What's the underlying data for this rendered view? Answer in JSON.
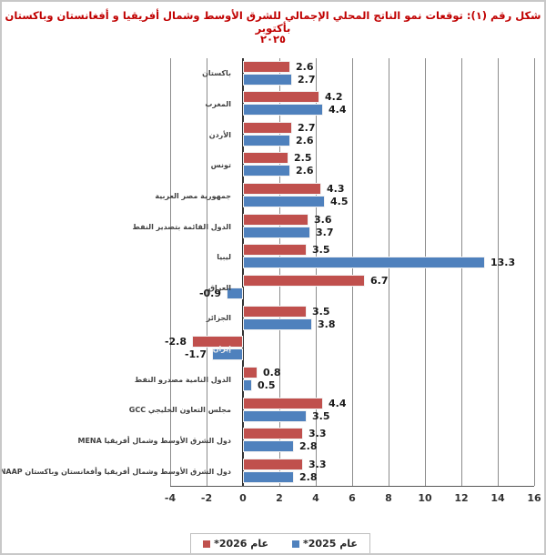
{
  "figure": {
    "title_line1": "شكل رقم (١): توقعات نمو الناتج المحلي الإجمالي للشرق الأوسط وشمال أفريقيا و أفغانستان وباكستان بأكتوبر",
    "title_line2": "٢٠٢٥",
    "title_color": "#C00000"
  },
  "chart_data": {
    "type": "bar",
    "orientation": "horizontal",
    "title": "شكل رقم (١): توقعات نمو الناتج المحلي الإجمالي للشرق الأوسط وشمال أفريقيا و أفغانستان وباكستان بأكتوبر ٢٠٢٥",
    "xlabel": "",
    "ylabel": "",
    "xlim": [
      -4,
      16
    ],
    "x_ticks": [
      -4,
      -2,
      0,
      2,
      4,
      6,
      8,
      10,
      12,
      14,
      16
    ],
    "grid": true,
    "legend_position": "bottom-center",
    "categories": [
      "باكستان",
      "المغرب",
      "الأردن",
      "تونس",
      "جمهورية مصر العربية",
      "الدول القائمة بتصدير النفط",
      "ليبيا",
      "العراق",
      "الجزائر",
      "إيران",
      "الدول النامية مصدرو النفط",
      "مجلس التعاون الخليجي GCC",
      "دول الشرق الأوسط وشمال أفريقيا MENA",
      "دول الشرق الأوسط وشمال أفريقيا وأفغانستان وباكستان MENAAP"
    ],
    "category_label_inside_bar_index": 9,
    "series": [
      {
        "name": "عام 2026*",
        "color": "#C0504D",
        "values": [
          2.6,
          4.2,
          2.7,
          2.5,
          4.3,
          3.6,
          3.5,
          6.7,
          3.5,
          -2.8,
          0.8,
          4.4,
          3.3,
          3.3
        ]
      },
      {
        "name": "عام 2025*",
        "color": "#4F81BD",
        "values": [
          2.7,
          4.4,
          2.6,
          2.6,
          4.5,
          3.7,
          13.3,
          -0.9,
          3.8,
          -1.7,
          0.5,
          3.5,
          2.8,
          2.8
        ]
      }
    ]
  }
}
